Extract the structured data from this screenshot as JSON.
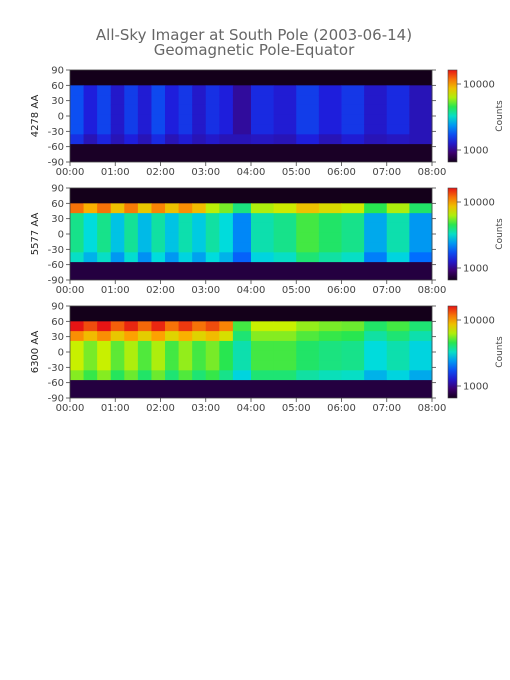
{
  "title": "All-Sky Imager at South Pole (2003-06-14)",
  "subtitle": "Geomagnetic Pole-Equator",
  "chart_data": [
    {
      "type": "heatmap",
      "ylabel": "4278 AA",
      "x_ticks": [
        "00:00",
        "01:00",
        "02:00",
        "03:00",
        "04:00",
        "05:00",
        "06:00",
        "07:00",
        "08:00"
      ],
      "y_ticks": [
        "90",
        "60",
        "30",
        "0",
        "-30",
        "-60",
        "-90"
      ],
      "xlim": [
        0,
        8
      ],
      "ylim": [
        -90,
        90
      ],
      "data_band": [
        -55,
        60
      ],
      "colorbar": {
        "label": "Counts",
        "ticks": [
          "10000",
          "1000"
        ],
        "scale": "log"
      },
      "bands": [
        {
          "x0": 0,
          "x1": 0.3,
          "v": 0.3
        },
        {
          "x0": 0.3,
          "x1": 0.6,
          "v": 0.22
        },
        {
          "x0": 0.6,
          "x1": 0.9,
          "v": 0.28
        },
        {
          "x0": 0.9,
          "x1": 1.2,
          "v": 0.2
        },
        {
          "x0": 1.2,
          "x1": 1.5,
          "v": 0.27
        },
        {
          "x0": 1.5,
          "x1": 1.8,
          "v": 0.21
        },
        {
          "x0": 1.8,
          "x1": 2.1,
          "v": 0.29
        },
        {
          "x0": 2.1,
          "x1": 2.4,
          "v": 0.22
        },
        {
          "x0": 2.4,
          "x1": 2.7,
          "v": 0.26
        },
        {
          "x0": 2.7,
          "x1": 3.0,
          "v": 0.2
        },
        {
          "x0": 3.0,
          "x1": 3.3,
          "v": 0.25
        },
        {
          "x0": 3.3,
          "x1": 3.6,
          "v": 0.22
        },
        {
          "x0": 3.6,
          "x1": 4.0,
          "v": 0.15
        },
        {
          "x0": 4.0,
          "x1": 4.5,
          "v": 0.24
        },
        {
          "x0": 4.5,
          "x1": 5.0,
          "v": 0.21
        },
        {
          "x0": 5.0,
          "x1": 5.5,
          "v": 0.27
        },
        {
          "x0": 5.5,
          "x1": 6.0,
          "v": 0.22
        },
        {
          "x0": 6.0,
          "x1": 6.5,
          "v": 0.26
        },
        {
          "x0": 6.5,
          "x1": 7.0,
          "v": 0.2
        },
        {
          "x0": 7.0,
          "x1": 7.5,
          "v": 0.24
        },
        {
          "x0": 7.5,
          "x1": 8.0,
          "v": 0.18
        }
      ]
    },
    {
      "type": "heatmap",
      "ylabel": "5577 AA",
      "x_ticks": [
        "00:00",
        "01:00",
        "02:00",
        "03:00",
        "04:00",
        "05:00",
        "06:00",
        "07:00",
        "08:00"
      ],
      "y_ticks": [
        "90",
        "60",
        "30",
        "0",
        "-30",
        "-60",
        "-90"
      ],
      "xlim": [
        0,
        8
      ],
      "ylim": [
        -90,
        90
      ],
      "data_band": [
        -55,
        60
      ],
      "colorbar": {
        "label": "Counts",
        "ticks": [
          "10000",
          "1000"
        ],
        "scale": "log"
      },
      "bands": [
        {
          "x0": 0,
          "x1": 0.3,
          "v": 0.55
        },
        {
          "x0": 0.3,
          "x1": 0.6,
          "v": 0.48
        },
        {
          "x0": 0.6,
          "x1": 0.9,
          "v": 0.55
        },
        {
          "x0": 0.9,
          "x1": 1.2,
          "v": 0.45
        },
        {
          "x0": 1.2,
          "x1": 1.5,
          "v": 0.54
        },
        {
          "x0": 1.5,
          "x1": 1.8,
          "v": 0.44
        },
        {
          "x0": 1.8,
          "x1": 2.1,
          "v": 0.53
        },
        {
          "x0": 2.1,
          "x1": 2.4,
          "v": 0.45
        },
        {
          "x0": 2.4,
          "x1": 2.7,
          "v": 0.52
        },
        {
          "x0": 2.7,
          "x1": 3.0,
          "v": 0.46
        },
        {
          "x0": 3.0,
          "x1": 3.3,
          "v": 0.53
        },
        {
          "x0": 3.3,
          "x1": 3.6,
          "v": 0.48
        },
        {
          "x0": 3.6,
          "x1": 4.0,
          "v": 0.38
        },
        {
          "x0": 4.0,
          "x1": 4.5,
          "v": 0.52
        },
        {
          "x0": 4.5,
          "x1": 5.0,
          "v": 0.55
        },
        {
          "x0": 5.0,
          "x1": 5.5,
          "v": 0.62
        },
        {
          "x0": 5.5,
          "x1": 6.0,
          "v": 0.58
        },
        {
          "x0": 6.0,
          "x1": 6.5,
          "v": 0.55
        },
        {
          "x0": 6.5,
          "x1": 7.0,
          "v": 0.42
        },
        {
          "x0": 7.0,
          "x1": 7.5,
          "v": 0.52
        },
        {
          "x0": 7.5,
          "x1": 8.0,
          "v": 0.4
        }
      ]
    },
    {
      "type": "heatmap",
      "ylabel": "6300 AA",
      "x_ticks": [
        "00:00",
        "01:00",
        "02:00",
        "03:00",
        "04:00",
        "05:00",
        "06:00",
        "07:00",
        "08:00"
      ],
      "y_ticks": [
        "90",
        "60",
        "30",
        "0",
        "-30",
        "-60",
        "-90"
      ],
      "xlim": [
        0,
        8
      ],
      "ylim": [
        -90,
        90
      ],
      "data_band": [
        -55,
        60
      ],
      "colorbar": {
        "label": "Counts",
        "ticks": [
          "10000",
          "1000"
        ],
        "scale": "log"
      },
      "bands": [
        {
          "x0": 0,
          "x1": 0.3,
          "v": 0.72
        },
        {
          "x0": 0.3,
          "x1": 0.6,
          "v": 0.66
        },
        {
          "x0": 0.6,
          "x1": 0.9,
          "v": 0.72
        },
        {
          "x0": 0.9,
          "x1": 1.2,
          "v": 0.64
        },
        {
          "x0": 1.2,
          "x1": 1.5,
          "v": 0.7
        },
        {
          "x0": 1.5,
          "x1": 1.8,
          "v": 0.63
        },
        {
          "x0": 1.8,
          "x1": 2.1,
          "v": 0.7
        },
        {
          "x0": 2.1,
          "x1": 2.4,
          "v": 0.62
        },
        {
          "x0": 2.4,
          "x1": 2.7,
          "v": 0.68
        },
        {
          "x0": 2.7,
          "x1": 3.0,
          "v": 0.62
        },
        {
          "x0": 3.0,
          "x1": 3.3,
          "v": 0.66
        },
        {
          "x0": 3.3,
          "x1": 3.6,
          "v": 0.6
        },
        {
          "x0": 3.6,
          "x1": 4.0,
          "v": 0.52
        },
        {
          "x0": 4.0,
          "x1": 4.5,
          "v": 0.62
        },
        {
          "x0": 4.5,
          "x1": 5.0,
          "v": 0.62
        },
        {
          "x0": 5.0,
          "x1": 5.5,
          "v": 0.58
        },
        {
          "x0": 5.5,
          "x1": 6.0,
          "v": 0.56
        },
        {
          "x0": 6.0,
          "x1": 6.5,
          "v": 0.55
        },
        {
          "x0": 6.5,
          "x1": 7.0,
          "v": 0.48
        },
        {
          "x0": 7.0,
          "x1": 7.5,
          "v": 0.52
        },
        {
          "x0": 7.5,
          "x1": 8.0,
          "v": 0.47
        }
      ]
    }
  ]
}
